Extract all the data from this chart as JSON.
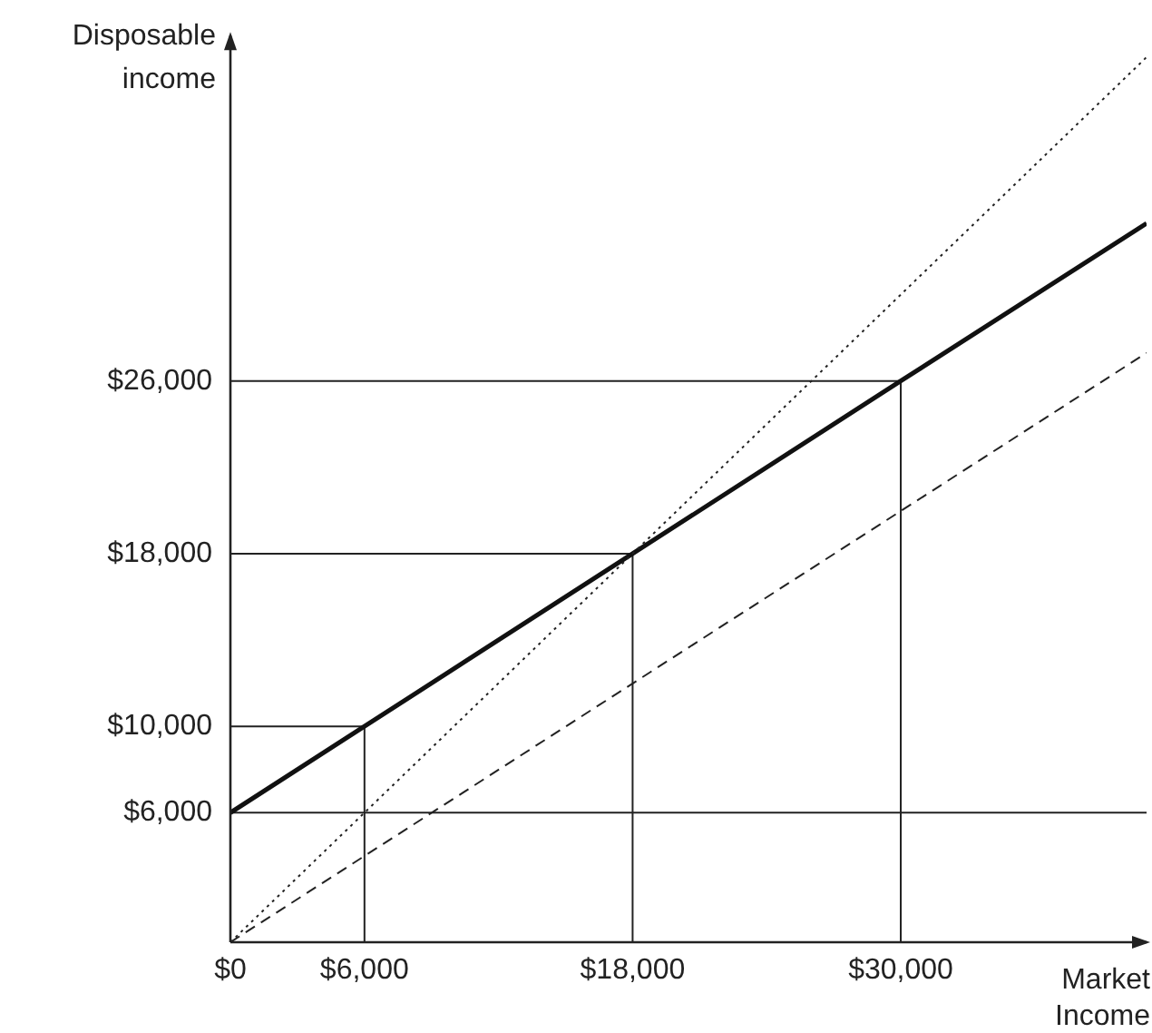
{
  "chart_data": {
    "type": "line",
    "xlabel": "Market\nIncome",
    "ylabel": "Disposable\nincome",
    "xlim": [
      0,
      41000
    ],
    "ylim": [
      0,
      42000
    ],
    "xticks": [
      {
        "value": 0,
        "label": "$0"
      },
      {
        "value": 6000,
        "label": "$6,000"
      },
      {
        "value": 18000,
        "label": "$18,000"
      },
      {
        "value": 30000,
        "label": "$30,000"
      }
    ],
    "yticks": [
      {
        "value": 6000,
        "label": "$6,000"
      },
      {
        "value": 10000,
        "label": "$10,000"
      },
      {
        "value": 18000,
        "label": "$18,000"
      },
      {
        "value": 26000,
        "label": "$26,000"
      }
    ],
    "grid": false,
    "legend": false,
    "marker": "none",
    "ref_lines": [
      {
        "axis": "y",
        "value": 6000,
        "color": "#222222"
      }
    ],
    "series": [
      {
        "type": "line",
        "color": "#222222",
        "line_style": "dotted",
        "x": [
          0,
          41000
        ],
        "values": [
          0,
          41000
        ]
      },
      {
        "type": "line",
        "color": "#111111",
        "line_style": "solid",
        "x": [
          0,
          6000,
          18000,
          30000,
          41000
        ],
        "values": [
          6000,
          10000,
          18000,
          26000,
          33300
        ]
      },
      {
        "type": "line",
        "color": "#222222",
        "line_style": "dashed",
        "x": [
          0,
          41000
        ],
        "values": [
          0,
          27300
        ]
      },
      {
        "type": "line",
        "color": "#222222",
        "line_style": "solid",
        "x": [
          0,
          6000,
          6000
        ],
        "values": [
          10000,
          10000,
          0
        ]
      },
      {
        "type": "line",
        "color": "#222222",
        "line_style": "solid",
        "x": [
          0,
          18000,
          18000
        ],
        "values": [
          18000,
          18000,
          0
        ]
      },
      {
        "type": "line",
        "color": "#222222",
        "line_style": "solid",
        "x": [
          0,
          30000,
          30000
        ],
        "values": [
          26000,
          26000,
          0
        ]
      }
    ]
  }
}
